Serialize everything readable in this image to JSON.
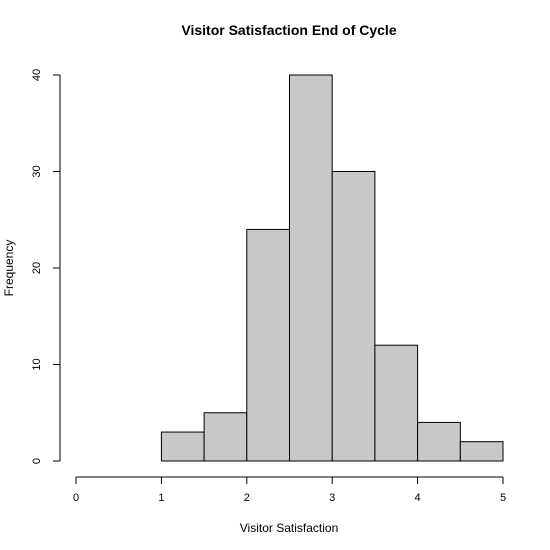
{
  "chart_data": {
    "type": "bar",
    "title": "Visitor Satisfaction End of Cycle",
    "xlabel": "Visitor Satisfaction",
    "ylabel": "Frequency",
    "bins": [
      {
        "x0": 1.0,
        "x1": 1.5,
        "count": 3
      },
      {
        "x0": 1.5,
        "x1": 2.0,
        "count": 5
      },
      {
        "x0": 2.0,
        "x1": 2.5,
        "count": 24
      },
      {
        "x0": 2.5,
        "x1": 3.0,
        "count": 40
      },
      {
        "x0": 3.0,
        "x1": 3.5,
        "count": 30
      },
      {
        "x0": 3.5,
        "x1": 4.0,
        "count": 12
      },
      {
        "x0": 4.0,
        "x1": 4.5,
        "count": 4
      },
      {
        "x0": 4.5,
        "x1": 5.0,
        "count": 2
      }
    ],
    "xlim": [
      0,
      5
    ],
    "ylim": [
      0,
      40
    ],
    "xticks": [
      "0",
      "1",
      "2",
      "3",
      "4",
      "5"
    ],
    "yticks": [
      "0",
      "10",
      "20",
      "30",
      "40"
    ],
    "bar_color": "#c8c8c8",
    "grid": false
  }
}
